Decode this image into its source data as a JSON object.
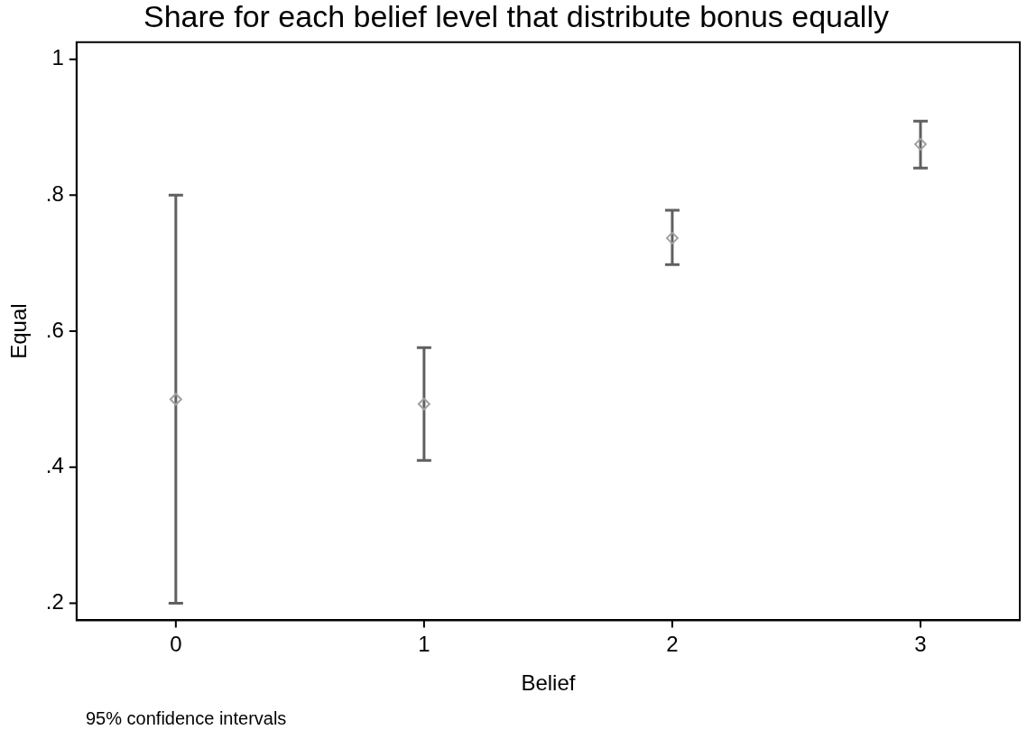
{
  "chart_data": {
    "type": "scatter",
    "title": "Share for each belief level that distribute bonus equally",
    "xlabel": "Belief",
    "ylabel": "Equal",
    "annotations": [
      "95% confidence intervals"
    ],
    "x": [
      0,
      1,
      2,
      3
    ],
    "series": [
      {
        "color": "#a0a0a0",
        "values": [
          0.5,
          0.493,
          0.737,
          0.875
        ],
        "errors": [
          [
            0.2,
            0.8
          ],
          [
            0.41,
            0.576
          ],
          [
            0.698,
            0.778
          ],
          [
            0.84,
            0.909
          ]
        ]
      }
    ],
    "xlim": [
      -0.4,
      3.4
    ],
    "xticks": [
      0,
      1,
      2,
      3
    ],
    "ylim": [
      0.175,
      1.025
    ],
    "yticks": [
      {
        "value": 0.2,
        "label": ".2"
      },
      {
        "value": 0.4,
        "label": ".4"
      },
      {
        "value": 0.6,
        "label": ".6"
      },
      {
        "value": 0.8,
        "label": ".8"
      },
      1
    ],
    "marker": "diamond",
    "grid": false,
    "legend": false
  }
}
